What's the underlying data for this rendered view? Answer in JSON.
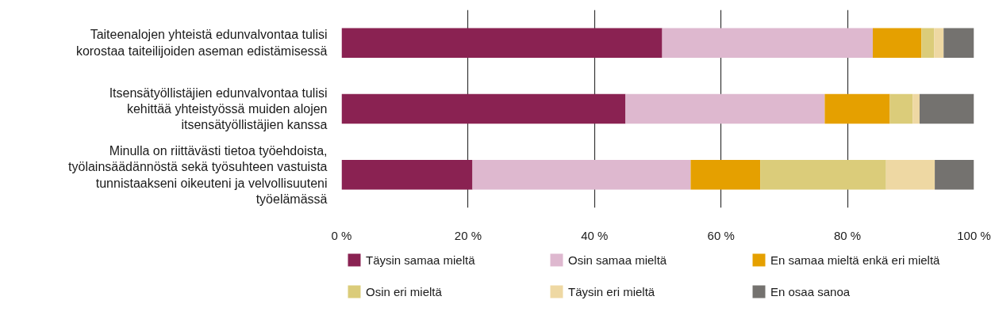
{
  "chart_data": {
    "type": "bar",
    "orientation": "horizontal",
    "stacked": true,
    "categories": [
      "Taiteenalojen yhteistä edunvalvontaa tulisi korostaa taiteilijoiden aseman edistämisessä",
      "Itsensätyöllistäjien edunvalvontaa tulisi kehittää yhteistyössä muiden alojen itsensätyöllistäjien kanssa",
      "Minulla on riittävästi tietoa työehdoista, työlainsäädännöstä sekä työsuhteen vastuista tunnistaakseni oikeuteni ja velvollisuuteni työelämässä"
    ],
    "series": [
      {
        "name": "Täysin samaa mieltä",
        "color": "#8a2252",
        "values": [
          50.7,
          44.9,
          20.7
        ]
      },
      {
        "name": "Osin samaa mieltä",
        "color": "#deb8cf",
        "values": [
          33.3,
          31.5,
          34.5
        ]
      },
      {
        "name": "En samaa mieltä enkä eri mieltä",
        "color": "#e5a000",
        "values": [
          7.7,
          10.3,
          11.0
        ]
      },
      {
        "name": "Osin eri mieltä",
        "color": "#dbcc7a",
        "values": [
          2.0,
          3.6,
          19.9
        ]
      },
      {
        "name": "Täysin eri mieltä",
        "color": "#eed8a3",
        "values": [
          1.5,
          1.1,
          7.7
        ]
      },
      {
        "name": "En osaa sanoa",
        "color": "#74726f",
        "values": [
          4.8,
          8.6,
          6.2
        ]
      }
    ],
    "xlim": [
      0,
      100
    ],
    "xticks": [
      {
        "value": 0,
        "label": "0 %"
      },
      {
        "value": 20,
        "label": "20 %"
      },
      {
        "value": 40,
        "label": "40 %"
      },
      {
        "value": 60,
        "label": "60 %"
      },
      {
        "value": 80,
        "label": "80 %"
      },
      {
        "value": 100,
        "label": "100 %"
      }
    ],
    "grid": "x",
    "legend": "bottom"
  }
}
